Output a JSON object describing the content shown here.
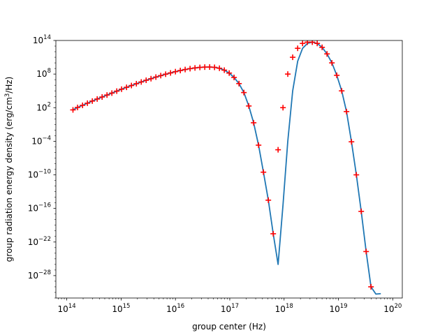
{
  "chart_data": {
    "type": "line",
    "title": "",
    "xlabel": "group center (Hz)",
    "ylabel": "group radiation energy density (erg/cm3/Hz)",
    "ylabel_parts": {
      "before": "group radiation energy density (erg/cm",
      "sup": "3",
      "after": "/Hz)"
    },
    "x_scale": "log",
    "y_scale": "log",
    "xlim": [
      63000000000000.0,
      1.5e+20
    ],
    "ylim": [
      1e-32,
      100000000000000.0
    ],
    "grid": false,
    "legend": "none",
    "x_ticks": [
      {
        "value": 100000000000000.0,
        "base": "10",
        "exp": "14"
      },
      {
        "value": 1000000000000000.0,
        "base": "10",
        "exp": "15"
      },
      {
        "value": 1e+16,
        "base": "10",
        "exp": "16"
      },
      {
        "value": 1e+17,
        "base": "10",
        "exp": "17"
      },
      {
        "value": 1e+18,
        "base": "10",
        "exp": "18"
      },
      {
        "value": 1e+19,
        "base": "10",
        "exp": "19"
      },
      {
        "value": 1e+20,
        "base": "10",
        "exp": "20"
      }
    ],
    "y_ticks": [
      {
        "value": 100000000000000.0,
        "base": "10",
        "exp": "14"
      },
      {
        "value": 100000000.0,
        "base": "10",
        "exp": "8"
      },
      {
        "value": 100.0,
        "base": "10",
        "exp": "2"
      },
      {
        "value": 0.0001,
        "base": "10",
        "exp": "−4"
      },
      {
        "value": 1e-10,
        "base": "10",
        "exp": "−10"
      },
      {
        "value": 1e-16,
        "base": "10",
        "exp": "−16"
      },
      {
        "value": 1e-22,
        "base": "10",
        "exp": "−22"
      },
      {
        "value": 1e-28,
        "base": "10",
        "exp": "−28"
      }
    ],
    "colors": {
      "line": "#1f77b4",
      "marker": "#ff0000",
      "axes": "#000000"
    },
    "series": [
      {
        "style": "line",
        "x": [
          130000000000000.0,
          158000000000000.0,
          195000000000000.0,
          240000000000000.0,
          295000000000000.0,
          363000000000000.0,
          447000000000000.0,
          550000000000000.0,
          676000000000000.0,
          832000000000000.0,
          1020000000000000.0,
          1260000000000000.0,
          1550000000000000.0,
          1910000000000000.0,
          2350000000000000.0,
          2890000000000000.0,
          3550000000000000.0,
          4370000000000000.0,
          5370000000000000.0,
          6610000000000000.0,
          8130000000000000.0,
          1e+16,
          1.23e+16,
          1.51e+16,
          1.86e+16,
          2.29e+16,
          2.82e+16,
          3.47e+16,
          4.27e+16,
          5.25e+16,
          6.46e+16,
          7.94e+16,
          9.77e+16,
          1.2e+17,
          1.48e+17,
          1.82e+17,
          2.24e+17,
          2.75e+17,
          3.39e+17,
          4.17e+17,
          5.13e+17,
          6.31e+17,
          7.76e+17,
          9.55e+17,
          1.17e+18,
          1.44e+18,
          1.78e+18,
          2.19e+18,
          2.69e+18,
          3.31e+18,
          4.07e+18,
          5.01e+18,
          6.17e+18,
          7.59e+18,
          9.33e+18,
          1.15e+19,
          1.41e+19,
          1.74e+19,
          2.14e+19,
          2.63e+19,
          3.24e+19,
          3.98e+19,
          4.9e+19,
          6.03e+19
        ],
        "y": [
          40.0,
          110.0,
          260.0,
          630.0,
          1500.0,
          3500.0,
          8000.0,
          18000.0,
          40000.0,
          90000.0,
          200000.0,
          430000.0,
          900000.0,
          1900000.0,
          3900000.0,
          7800000.0,
          15000000.0,
          29000000.0,
          53000000.0,
          95000000.0,
          160000000.0,
          270000000.0,
          430000000.0,
          650000000.0,
          930000000.0,
          1250000000.0,
          1550000000.0,
          1750000000.0,
          1800000000.0,
          1600000000.0,
          1100000000.0,
          500000000.0,
          150000000.0,
          25000000.0,
          2000000.0,
          50000.0,
          200.0,
          0.2,
          2e-05,
          3e-10,
          3e-15,
          3e-21,
          1e-26,
          4e-16,
          0.0001,
          100000.0,
          20000000000.0,
          4000000000000.0,
          30000000000000.0,
          50000000000000.0,
          30000000000000.0,
          6000000000000.0,
          400000000000.0,
          10000000000.0,
          60000000.0,
          100000.0,
          20.0,
          8e-05,
          1e-10,
          3e-17,
          2e-24,
          1e-30,
          5e-32,
          6e-32
        ]
      },
      {
        "style": "marker",
        "marker": "+",
        "x": [
          130000000000000.0,
          158000000000000.0,
          195000000000000.0,
          240000000000000.0,
          295000000000000.0,
          363000000000000.0,
          447000000000000.0,
          550000000000000.0,
          676000000000000.0,
          832000000000000.0,
          1020000000000000.0,
          1260000000000000.0,
          1550000000000000.0,
          1910000000000000.0,
          2350000000000000.0,
          2890000000000000.0,
          3550000000000000.0,
          4370000000000000.0,
          5370000000000000.0,
          6610000000000000.0,
          8130000000000000.0,
          1e+16,
          1.23e+16,
          1.51e+16,
          1.86e+16,
          2.29e+16,
          2.82e+16,
          3.47e+16,
          4.27e+16,
          5.25e+16,
          6.46e+16,
          7.94e+16,
          9.77e+16,
          1.2e+17,
          1.48e+17,
          1.82e+17,
          2.24e+17,
          2.75e+17,
          3.39e+17,
          4.17e+17,
          5.13e+17,
          6.31e+17,
          7.76e+17,
          9.55e+17,
          1.17e+18,
          1.44e+18,
          1.78e+18,
          2.19e+18,
          2.69e+18,
          3.31e+18,
          4.07e+18,
          5.01e+18,
          6.17e+18,
          7.59e+18,
          9.33e+18,
          1.15e+19,
          1.41e+19,
          1.74e+19,
          2.14e+19,
          2.63e+19,
          3.24e+19,
          3.98e+19
        ],
        "y": [
          40.0,
          110.0,
          260.0,
          630.0,
          1500.0,
          3500.0,
          8000.0,
          18000.0,
          40000.0,
          90000.0,
          200000.0,
          430000.0,
          900000.0,
          1900000.0,
          3900000.0,
          7800000.0,
          15000000.0,
          29000000.0,
          53000000.0,
          95000000.0,
          160000000.0,
          270000000.0,
          430000000.0,
          650000000.0,
          930000000.0,
          1250000000.0,
          1550000000.0,
          1750000000.0,
          1800000000.0,
          1600000000.0,
          1100000000.0,
          500000000.0,
          150000000.0,
          25000000.0,
          2000000.0,
          50000.0,
          200.0,
          0.2,
          2e-05,
          3e-10,
          3e-15,
          3e-21,
          3e-06,
          100.0,
          100000000.0,
          100000000000.0,
          4000000000000.0,
          30000000000000.0,
          50000000000000.0,
          50000000000000.0,
          30000000000000.0,
          6000000000000.0,
          400000000000.0,
          10000000000.0,
          60000000.0,
          100000.0,
          20.0,
          8e-05,
          1e-10,
          3e-17,
          2e-24,
          1e-30
        ]
      }
    ]
  }
}
